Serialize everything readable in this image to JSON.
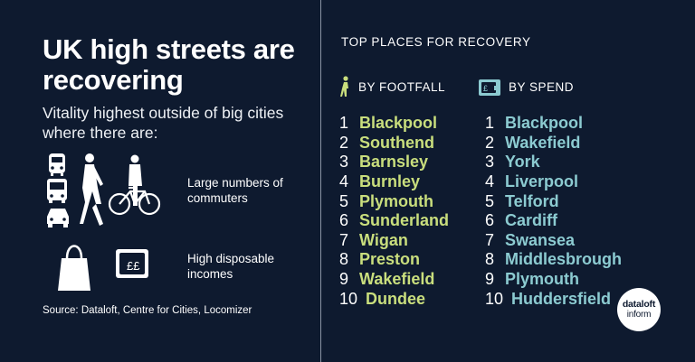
{
  "left": {
    "title": "UK high streets are recovering",
    "subtitle": "Vitality highest outside of big cities where there are:",
    "features": [
      {
        "label": "Large numbers of commuters",
        "icon": "commuters-icon"
      },
      {
        "label": "High disposable incomes",
        "icon": "shopping-bag-wallet-icon"
      }
    ],
    "source": "Source: Dataloft, Centre for Cities, Locomizer"
  },
  "right": {
    "title": "TOP PLACES FOR RECOVERY",
    "footfall": {
      "heading": "BY FOOTFALL",
      "icon": "walking-person-icon",
      "items": [
        {
          "rank": "1",
          "name": "Blackpool"
        },
        {
          "rank": "2",
          "name": "Southend"
        },
        {
          "rank": "3",
          "name": "Barnsley"
        },
        {
          "rank": "4",
          "name": "Burnley"
        },
        {
          "rank": "5",
          "name": "Plymouth"
        },
        {
          "rank": "6",
          "name": "Sunderland"
        },
        {
          "rank": "7",
          "name": "Wigan"
        },
        {
          "rank": "8",
          "name": "Preston"
        },
        {
          "rank": "9",
          "name": "Wakefield"
        },
        {
          "rank": "10",
          "name": "Dundee"
        }
      ]
    },
    "spend": {
      "heading": "BY SPEND",
      "icon": "wallet-icon",
      "items": [
        {
          "rank": "1",
          "name": "Blackpool"
        },
        {
          "rank": "2",
          "name": "Wakefield"
        },
        {
          "rank": "3",
          "name": "York"
        },
        {
          "rank": "4",
          "name": "Liverpool"
        },
        {
          "rank": "5",
          "name": "Telford"
        },
        {
          "rank": "6",
          "name": "Cardiff"
        },
        {
          "rank": "7",
          "name": "Swansea"
        },
        {
          "rank": "8",
          "name": "Middlesbrough"
        },
        {
          "rank": "9",
          "name": "Plymouth"
        },
        {
          "rank": "10",
          "name": "Huddersfield"
        }
      ]
    }
  },
  "logo": {
    "line1": "dataloft",
    "line2": "inform"
  },
  "colors": {
    "background": "#0e1a2f",
    "footfall_accent": "#c9de7d",
    "spend_accent": "#8ccbd1"
  }
}
